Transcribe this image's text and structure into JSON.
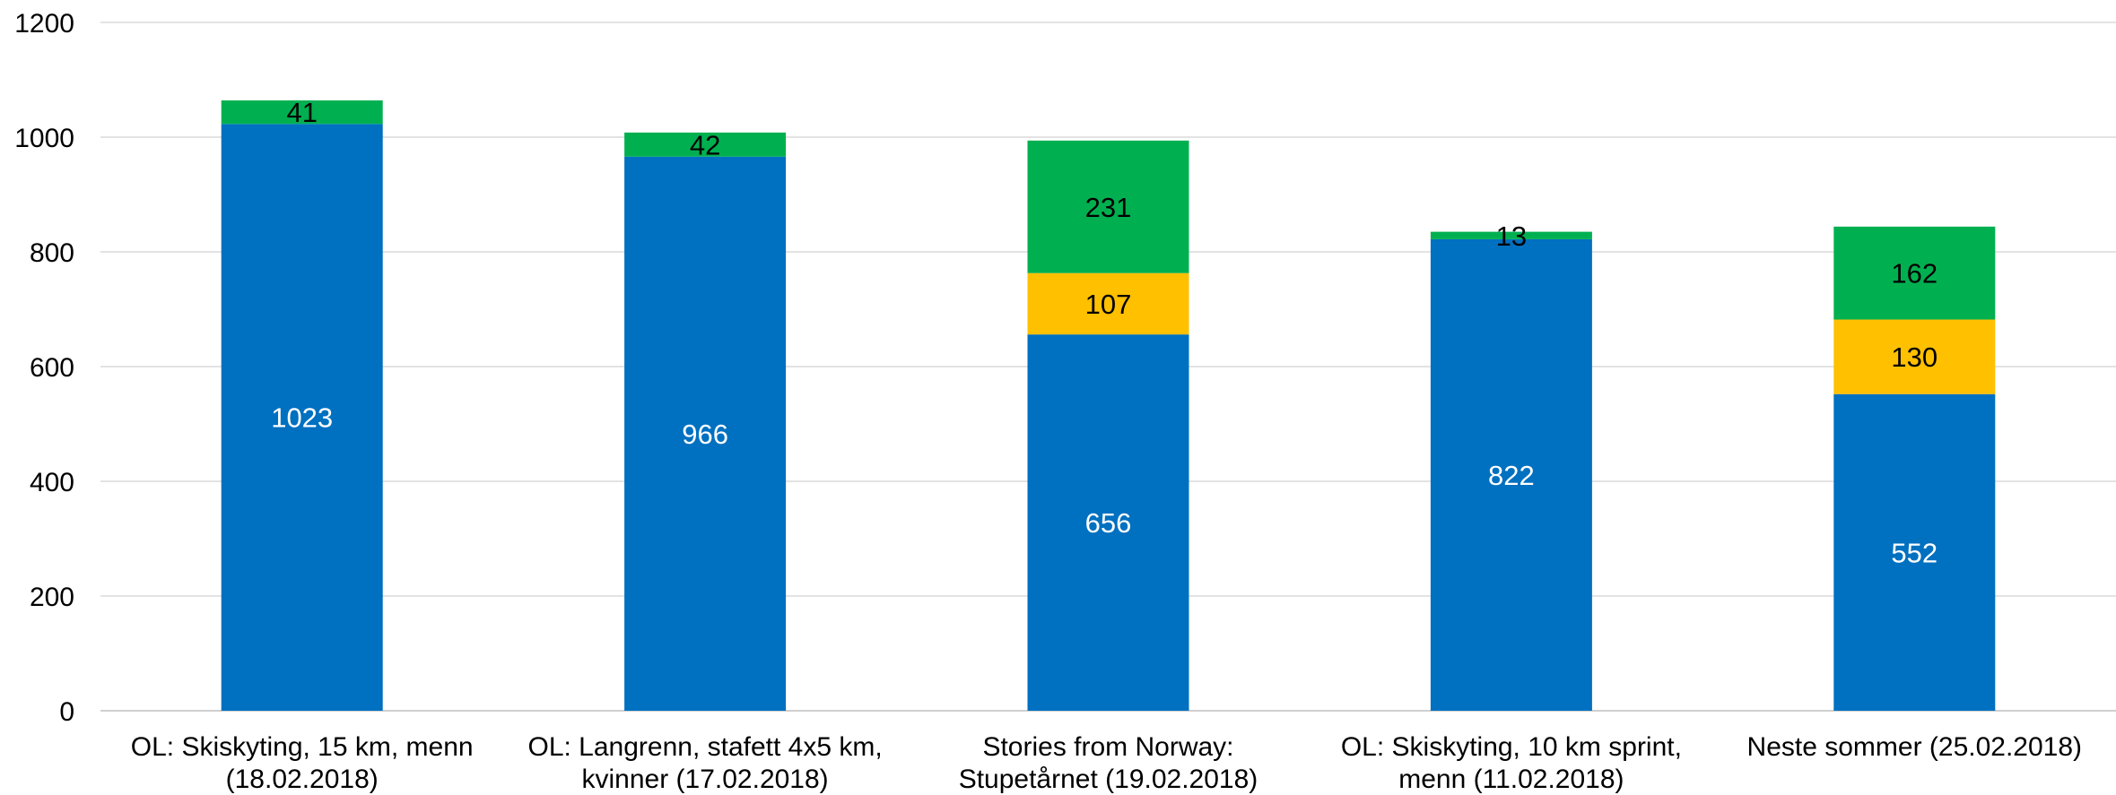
{
  "chart_data": {
    "type": "bar",
    "stacked": true,
    "categories": [
      [
        "OL: Skiskyting, 15 km, menn",
        "(18.02.2018)"
      ],
      [
        "OL: Langrenn, stafett 4x5 km,",
        "kvinner (17.02.2018)"
      ],
      [
        "Stories from Norway:",
        "Stupetårnet (19.02.2018)"
      ],
      [
        "OL: Skiskyting, 10 km sprint,",
        "menn (11.02.2018)"
      ],
      [
        "Neste sommer (25.02.2018)"
      ]
    ],
    "series": [
      {
        "values": [
          1023,
          966,
          656,
          822,
          552
        ],
        "color": "#0070C0",
        "label_color": "#ffffff"
      },
      {
        "values": [
          0,
          0,
          107,
          0,
          130
        ],
        "color": "#FFC000",
        "label_color": "#000000"
      },
      {
        "values": [
          41,
          42,
          231,
          13,
          162
        ],
        "color": "#00B050",
        "label_color": "#000000"
      }
    ],
    "ylim": [
      0,
      1200
    ],
    "yticks": [
      0,
      200,
      400,
      600,
      800,
      1000,
      1200
    ],
    "grid": true,
    "legend": "none",
    "xlabel": "",
    "ylabel": "",
    "title": ""
  }
}
